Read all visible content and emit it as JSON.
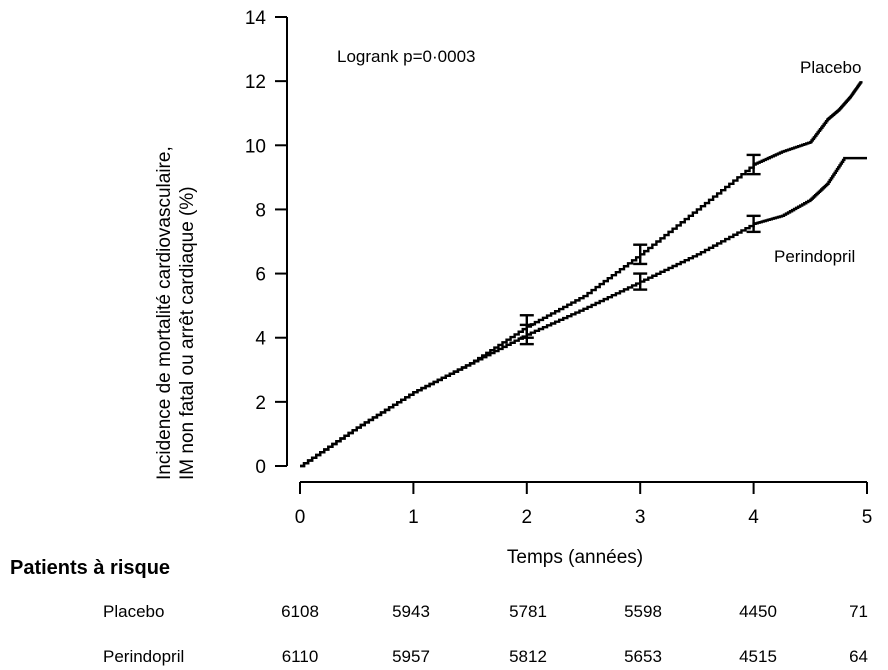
{
  "chart_data": {
    "type": "line",
    "title": "",
    "xlabel": "Temps (années)",
    "ylabel": [
      "Incidence de mortalité cardiovasculaire,",
      "IM non fatal ou arrêt cardiaque (%)"
    ],
    "xlim": [
      0,
      5
    ],
    "ylim": [
      0,
      14
    ],
    "xticks": [
      0,
      1,
      2,
      3,
      4,
      5
    ],
    "yticks": [
      0,
      2,
      4,
      6,
      8,
      10,
      12,
      14
    ],
    "grid": false,
    "annotation": "Logrank p=0·0003",
    "series": [
      {
        "name": "Placebo",
        "x": [
          0,
          0.5,
          1,
          1.5,
          2,
          2.5,
          3,
          3.5,
          4,
          4.25,
          4.5,
          4.65,
          4.75,
          4.85,
          4.95
        ],
        "y": [
          0,
          1.2,
          2.3,
          3.2,
          4.35,
          5.3,
          6.6,
          8.0,
          9.4,
          9.8,
          10.1,
          10.8,
          11.1,
          11.5,
          12.0
        ],
        "error_bars": [
          {
            "x": 2,
            "y": 4.35,
            "low": 4.0,
            "high": 4.7
          },
          {
            "x": 3,
            "y": 6.6,
            "low": 6.3,
            "high": 6.9
          },
          {
            "x": 4,
            "y": 9.4,
            "low": 9.1,
            "high": 9.7
          }
        ]
      },
      {
        "name": "Perindopril",
        "x": [
          0,
          0.5,
          1,
          1.5,
          2,
          2.5,
          3,
          3.5,
          4,
          4.25,
          4.5,
          4.65,
          4.8,
          5.0
        ],
        "y": [
          0,
          1.2,
          2.3,
          3.2,
          4.1,
          4.9,
          5.75,
          6.6,
          7.55,
          7.8,
          8.3,
          8.8,
          9.6,
          9.6
        ],
        "error_bars": [
          {
            "x": 2,
            "y": 4.1,
            "low": 3.8,
            "high": 4.4
          },
          {
            "x": 3,
            "y": 5.75,
            "low": 5.5,
            "high": 6.0
          },
          {
            "x": 4,
            "y": 7.55,
            "low": 7.3,
            "high": 7.8
          }
        ]
      }
    ]
  },
  "risk_table": {
    "title": "Patients à risque",
    "rows": [
      {
        "label": "Placebo",
        "values": [
          "6108",
          "5943",
          "5781",
          "5598",
          "4450",
          "71"
        ]
      },
      {
        "label": "Perindopril",
        "values": [
          "6110",
          "5957",
          "5812",
          "5653",
          "4515",
          "64"
        ]
      }
    ]
  }
}
